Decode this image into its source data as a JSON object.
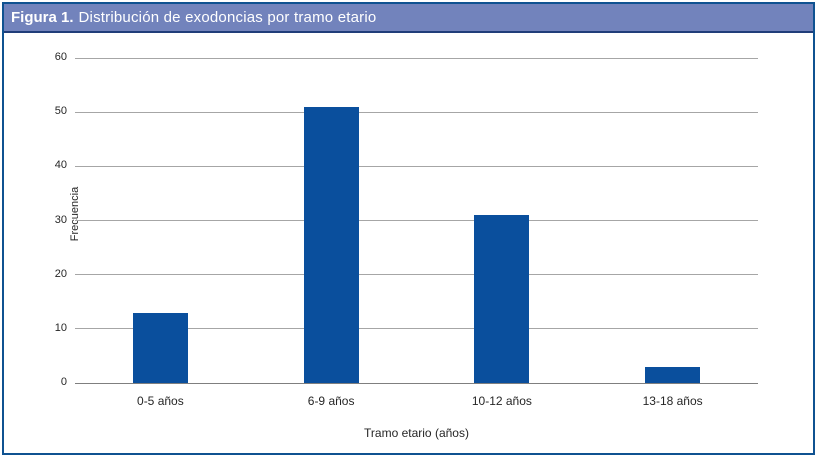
{
  "figure": {
    "header": {
      "prefix": "Figura 1.",
      "title": "Distribución de exodoncias por tramo etario"
    },
    "colors": {
      "frame_border": "#0f5291",
      "header_bg": "#7283bc",
      "header_underline": "#203d79",
      "bar": "#0a4f9d",
      "gridline": "#a6a6a6",
      "axis_line": "#7f7f7f"
    }
  },
  "chart_data": {
    "type": "bar",
    "title": "Figura 1. Distribución de exodoncias por tramo etario",
    "categories": [
      "0-5 años",
      "6-9 años",
      "10-12 años",
      "13-18 años"
    ],
    "values": [
      13,
      51,
      31,
      3
    ],
    "xlabel": "Tramo etario (años)",
    "ylabel": "Frecuencia",
    "ylim": [
      0,
      60
    ],
    "ytick_step": 10,
    "yticks": [
      0,
      10,
      20,
      30,
      40,
      50,
      60
    ],
    "grid": true,
    "legend": false,
    "bar_color": "#0a4f9d"
  }
}
